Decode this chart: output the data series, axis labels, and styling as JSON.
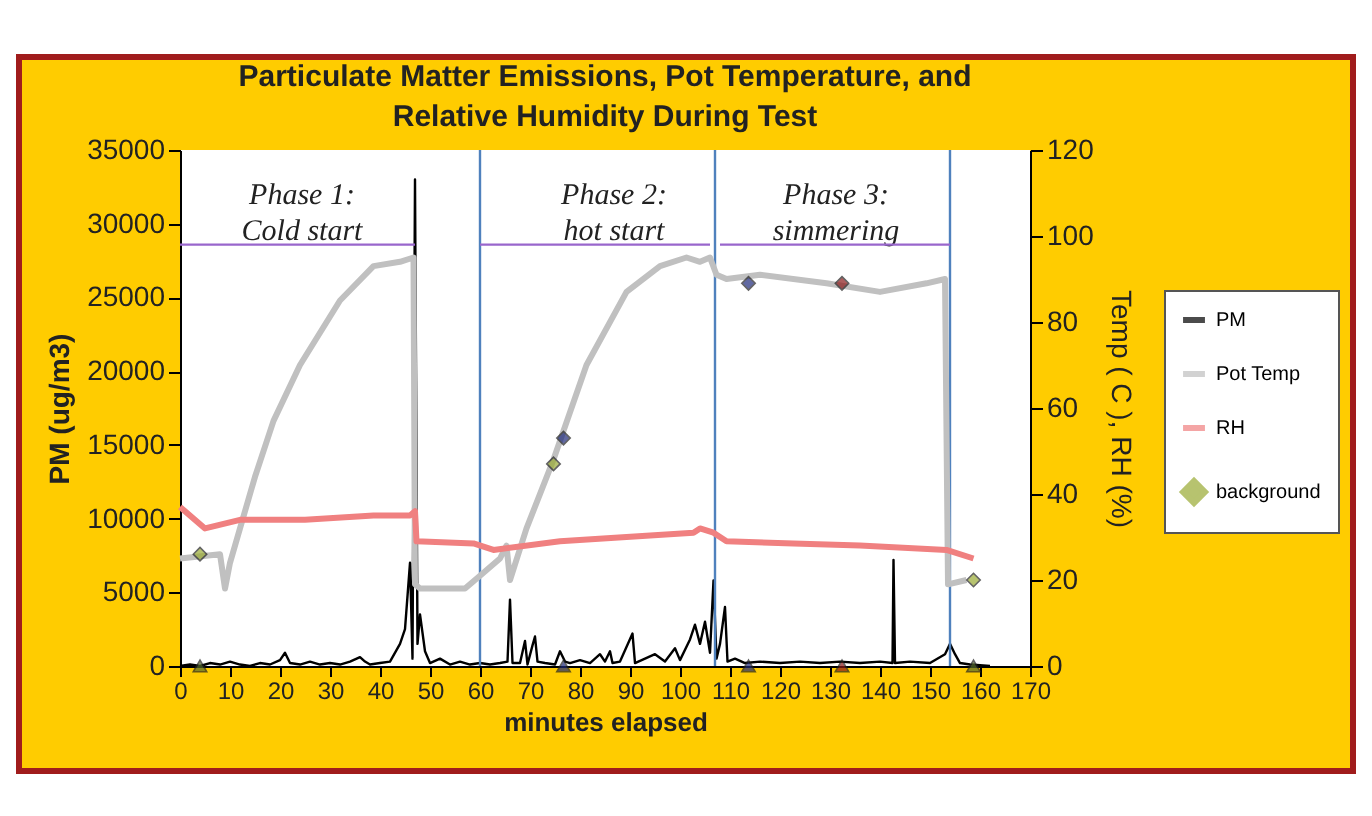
{
  "chart_data": {
    "type": "line",
    "title": "Particulate Matter Emissions, Pot Temperature, and\nRelative Humidity During Test",
    "xlabel": "minutes elapsed",
    "ylabel": "PM (ug/m3)",
    "y2label": "Temp ( C ), RH (%)",
    "xlim": [
      0,
      170
    ],
    "xticks": [
      0,
      10,
      20,
      30,
      40,
      50,
      60,
      70,
      80,
      90,
      100,
      110,
      120,
      130,
      140,
      150,
      160,
      170
    ],
    "ylim": [
      0,
      35000
    ],
    "yticks": [
      0,
      5000,
      10000,
      15000,
      20000,
      25000,
      30000,
      35000
    ],
    "y2lim": [
      0,
      120
    ],
    "y2ticks": [
      0,
      20,
      40,
      60,
      80,
      100,
      120
    ],
    "grid": false,
    "legend": "right",
    "series": [
      {
        "name": "PM",
        "color": "#000000",
        "x": [
          0,
          2,
          4,
          6,
          8,
          10,
          12,
          14,
          16,
          18,
          20,
          21,
          22,
          24,
          26,
          28,
          30,
          32,
          34,
          36,
          37,
          38,
          40,
          42,
          44,
          45,
          46,
          46.5,
          47,
          47.5,
          48,
          49,
          50,
          52,
          54,
          56,
          58,
          60,
          62,
          64,
          65.5,
          66,
          66.5,
          68,
          69,
          69.5,
          70.5,
          71,
          71.5,
          73,
          75,
          76,
          77,
          78,
          80,
          82,
          84,
          85,
          86,
          86.5,
          88,
          90.5,
          91,
          93,
          95,
          97,
          99,
          100,
          102,
          103,
          104,
          105,
          106,
          106.7,
          107.3,
          108,
          109,
          109.5,
          111,
          113,
          116,
          120,
          124,
          128,
          132,
          136,
          140,
          142.5,
          142.7,
          143,
          146,
          150,
          153,
          154,
          155,
          156,
          158,
          162
        ],
        "values": [
          0,
          100,
          0,
          200,
          100,
          300,
          100,
          0,
          200,
          100,
          400,
          900,
          200,
          100,
          300,
          100,
          200,
          100,
          300,
          600,
          300,
          100,
          200,
          300,
          1500,
          2500,
          7000,
          500,
          33000,
          1500,
          3500,
          1000,
          200,
          500,
          100,
          300,
          100,
          200,
          100,
          200,
          300,
          4500,
          200,
          200,
          1700,
          100,
          1400,
          2000,
          300,
          200,
          100,
          1000,
          300,
          200,
          400,
          200,
          800,
          300,
          1000,
          200,
          300,
          2200,
          200,
          500,
          800,
          300,
          1200,
          400,
          1800,
          2800,
          1500,
          3000,
          900,
          5800,
          500,
          1500,
          4000,
          300,
          500,
          200,
          300,
          200,
          300,
          200,
          300,
          200,
          300,
          200,
          7200,
          200,
          300,
          200,
          800,
          1500,
          800,
          200,
          100,
          0
        ]
      },
      {
        "name": "Pot Temp",
        "color": "#c0c0c0",
        "axis": "y2",
        "x": [
          0,
          8,
          9,
          10,
          12,
          15,
          18.7,
          24,
          32,
          38.7,
          44,
          46.7,
          47,
          48,
          57,
          60,
          64,
          65.3,
          66,
          69.3,
          74.7,
          81.3,
          89.3,
          96,
          101.3,
          104,
          106,
          107.3,
          109.3,
          116,
          129.3,
          140,
          149.3,
          153,
          153.6,
          157.3
        ],
        "values": [
          25,
          26,
          18,
          24,
          32,
          44,
          57,
          70,
          85,
          93,
          94,
          95,
          19,
          18,
          18,
          21,
          25,
          28,
          20,
          32,
          48,
          70,
          87,
          93,
          95,
          94,
          95,
          91,
          90,
          91,
          89,
          87,
          89,
          90,
          19,
          20
        ]
      },
      {
        "name": "RH",
        "color": "#f08080",
        "axis": "y2",
        "x": [
          0,
          5,
          12,
          25,
          38.7,
          46,
          47,
          47.3,
          58.7,
          62.7,
          76,
          89.3,
          102.7,
          104,
          106.7,
          109.3,
          122.7,
          136,
          153.3,
          158.7
        ],
        "values": [
          37,
          32,
          34,
          34,
          35,
          35,
          36,
          29,
          28.5,
          27,
          29,
          30,
          31,
          32,
          31,
          29,
          28.5,
          28,
          27,
          25
        ]
      },
      {
        "name": "background",
        "type": "scatter",
        "marker": "diamond",
        "color": "#99aa33",
        "axis": "y2",
        "x": [
          4,
          74.7,
          158.7
        ],
        "values": [
          26,
          47,
          20
        ]
      },
      {
        "type": "scatter",
        "marker": "diamond",
        "color": "#1f2a7a",
        "axis": "y2",
        "x": [
          76.7,
          113.7
        ],
        "values": [
          53,
          89
        ]
      },
      {
        "type": "scatter",
        "marker": "diamond",
        "color": "#8b1a1a",
        "axis": "y2",
        "x": [
          132.4
        ],
        "values": [
          89
        ]
      },
      {
        "type": "scatter",
        "marker": "triangle",
        "color": "#1f2a7a",
        "x": [
          76.7,
          113.7
        ],
        "values": [
          0,
          0
        ]
      },
      {
        "type": "scatter",
        "marker": "triangle",
        "color": "#8b1a1a",
        "x": [
          132.4
        ],
        "values": [
          0
        ]
      },
      {
        "type": "scatter",
        "marker": "triangle",
        "color": "#556b2f",
        "x": [
          4,
          158.7
        ],
        "values": [
          0,
          0
        ]
      },
      {
        "type": "line",
        "color": "#9966cc",
        "axis": "y2",
        "x": [
          0,
          47
        ],
        "values": [
          98,
          98
        ]
      },
      {
        "type": "line",
        "color": "#9966cc",
        "axis": "y2",
        "x": [
          60,
          106
        ],
        "values": [
          98,
          98
        ]
      },
      {
        "type": "line",
        "color": "#9966cc",
        "axis": "y2",
        "x": [
          108,
          154
        ],
        "values": [
          98,
          98
        ]
      }
    ],
    "ref_lines": [
      {
        "axis": "x",
        "value": 60,
        "color": "#4f81bd"
      },
      {
        "axis": "x",
        "value": 107,
        "color": "#4f81bd"
      },
      {
        "axis": "x",
        "value": 154,
        "color": "#4f81bd"
      }
    ],
    "annotations": [
      "Phase 1:\nCold start",
      "Phase 2:\nhot start",
      "Phase 3:\nsimmering"
    ]
  }
}
